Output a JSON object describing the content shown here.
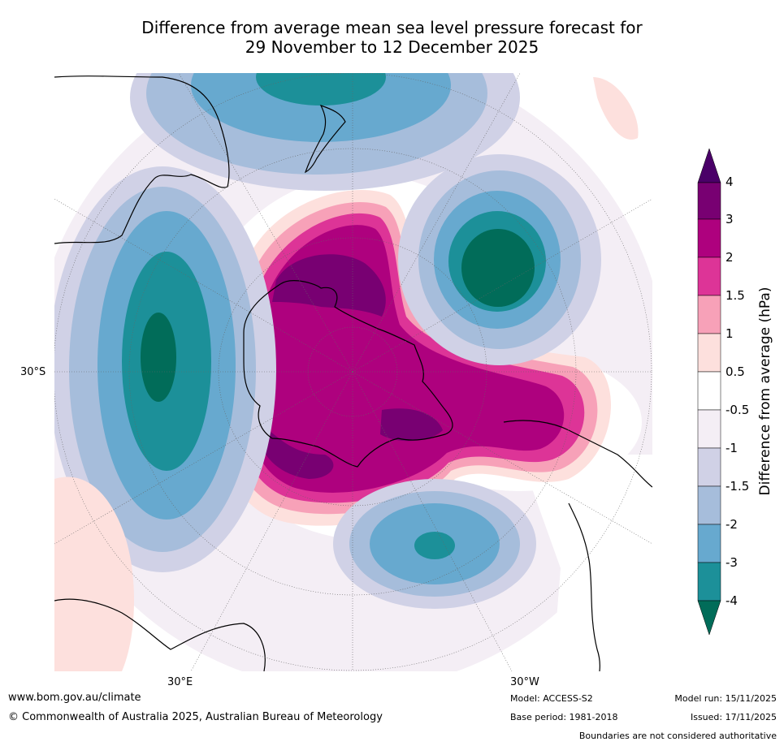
{
  "title": {
    "line1": "Difference from average mean sea level pressure forecast for",
    "line2": "29 November to 12 December 2025"
  },
  "map": {
    "projection": "south polar stereographic",
    "lat_label": "30°S",
    "lon_labels": [
      "30°E",
      "30°W"
    ]
  },
  "colorbar": {
    "title": "Difference from average (hPa)",
    "ticks": [
      "4",
      "3",
      "2",
      "1.5",
      "1",
      "0.5",
      "-0.5",
      "-1",
      "-1.5",
      "-2",
      "-3",
      "-4"
    ],
    "bins": [
      {
        "range": "> 4",
        "color": "#4a0068"
      },
      {
        "range": "3 to 4",
        "color": "#780072"
      },
      {
        "range": "2 to 3",
        "color": "#ae017e"
      },
      {
        "range": "1.5 to 2",
        "color": "#dd3497"
      },
      {
        "range": "1 to 1.5",
        "color": "#f7a1b8"
      },
      {
        "range": "0.5 to 1",
        "color": "#fde0dd"
      },
      {
        "range": "-0.5 to 0.5",
        "color": "#ffffff"
      },
      {
        "range": "-1 to -0.5",
        "color": "#f4eef5"
      },
      {
        "range": "-1.5 to -1",
        "color": "#d0d1e6"
      },
      {
        "range": "-2 to -1.5",
        "color": "#a6bddb"
      },
      {
        "range": "-3 to -2",
        "color": "#67a9cf"
      },
      {
        "range": "-4 to -3",
        "color": "#1c9099"
      },
      {
        "range": "< -4",
        "color": "#016c59"
      }
    ]
  },
  "footer": {
    "website": "www.bom.gov.au/climate",
    "copyright": "© Commonwealth of Australia 2025, Australian Bureau of Meteorology",
    "model": "Model: ACCESS-S2",
    "base_period": "Base period: 1981-2018",
    "model_run": "Model run: 15/11/2025",
    "issued": "Issued: 17/11/2025",
    "disclaimer": "Boundaries are not considered authoritative"
  }
}
